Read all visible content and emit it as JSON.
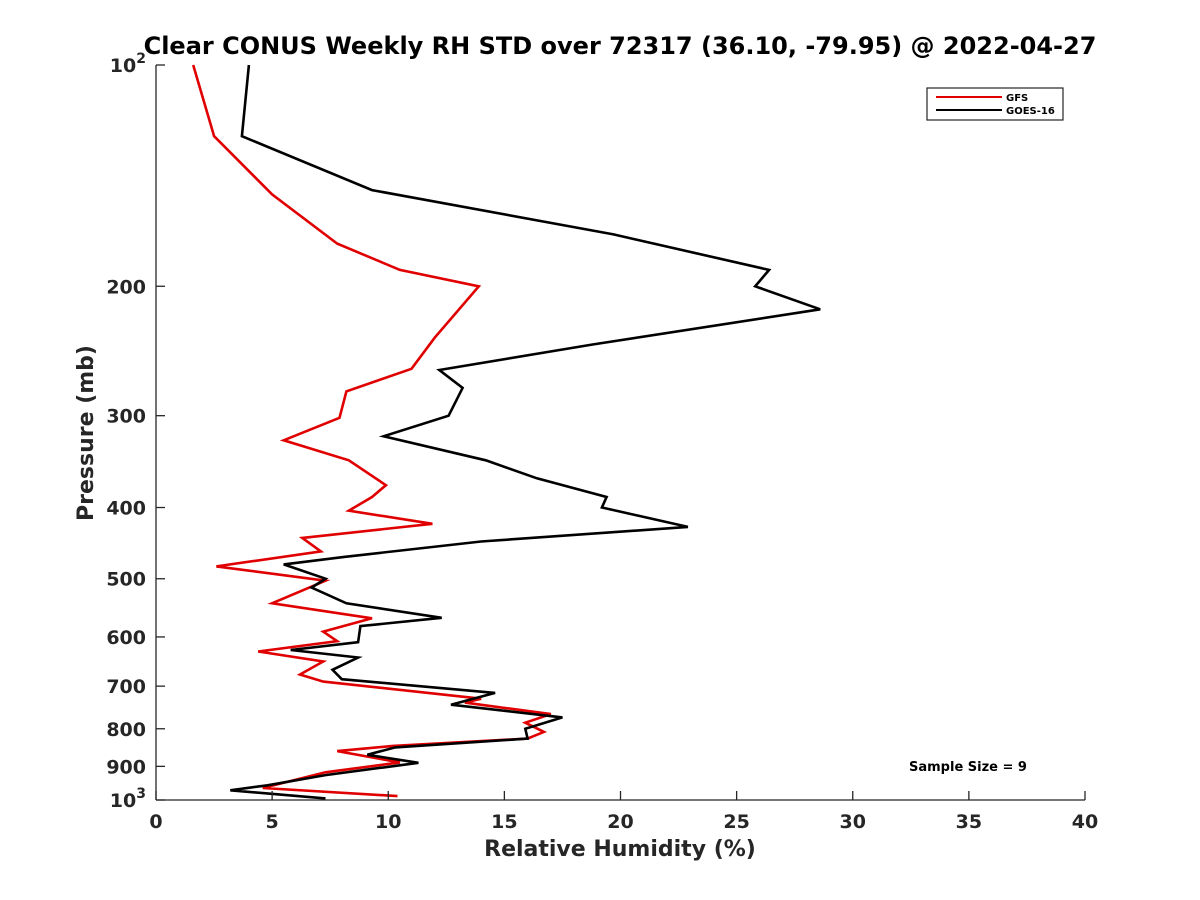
{
  "chart_data": {
    "type": "line",
    "title": "Clear CONUS Weekly RH STD over 72317 (36.10, -79.95) @ 2022-04-27",
    "xlabel": "Relative Humidity (%)",
    "ylabel": "Pressure (mb)",
    "xlim": [
      0,
      40
    ],
    "ylim": [
      100,
      1000
    ],
    "y_scale": "log",
    "y_reversed": true,
    "x_ticks": [
      "0",
      "5",
      "10",
      "15",
      "20",
      "25",
      "30",
      "35",
      "40"
    ],
    "y_ticks": [
      {
        "value": 100,
        "label": "10",
        "sup": "2"
      },
      {
        "value": 200,
        "label": "200",
        "sup": ""
      },
      {
        "value": 300,
        "label": "300",
        "sup": ""
      },
      {
        "value": 400,
        "label": "400",
        "sup": ""
      },
      {
        "value": 500,
        "label": "500",
        "sup": ""
      },
      {
        "value": 600,
        "label": "600",
        "sup": ""
      },
      {
        "value": 700,
        "label": "700",
        "sup": ""
      },
      {
        "value": 800,
        "label": "800",
        "sup": ""
      },
      {
        "value": 900,
        "label": "900",
        "sup": ""
      },
      {
        "value": 1000,
        "label": "10",
        "sup": "3"
      }
    ],
    "legend_position": "top-right",
    "series": [
      {
        "name": "GFS",
        "color": "#e00000",
        "points": [
          [
            1.6,
            100
          ],
          [
            2.5,
            125
          ],
          [
            5,
            150
          ],
          [
            7.8,
            175
          ],
          [
            10.5,
            190
          ],
          [
            13.9,
            200
          ],
          [
            12,
            235
          ],
          [
            11,
            259
          ],
          [
            8.2,
            278
          ],
          [
            7.9,
            302
          ],
          [
            5.5,
            324
          ],
          [
            8.3,
            345
          ],
          [
            9.9,
            373
          ],
          [
            9.3,
            387
          ],
          [
            8.3,
            404
          ],
          [
            11.9,
            421
          ],
          [
            6.3,
            440
          ],
          [
            7.1,
            459
          ],
          [
            2.6,
            481
          ],
          [
            7.3,
            503
          ],
          [
            5,
            540
          ],
          [
            9.3,
            566
          ],
          [
            7.2,
            590
          ],
          [
            7.8,
            608
          ],
          [
            4.4,
            628
          ],
          [
            7.2,
            648
          ],
          [
            6.2,
            675
          ],
          [
            7.2,
            690
          ],
          [
            14,
            728
          ],
          [
            13.3,
            737
          ],
          [
            17,
            764
          ],
          [
            15.9,
            785
          ],
          [
            16.7,
            808
          ],
          [
            16,
            825
          ],
          [
            10.2,
            844
          ],
          [
            7.8,
            858
          ],
          [
            10.5,
            889
          ],
          [
            7.3,
            917
          ],
          [
            4.6,
            963
          ],
          [
            10.4,
            988
          ]
        ]
      },
      {
        "name": "GOES-16",
        "color": "#000000",
        "points": [
          [
            4,
            100
          ],
          [
            3.7,
            125
          ],
          [
            9.3,
            148
          ],
          [
            19.7,
            170
          ],
          [
            26.4,
            190
          ],
          [
            25.8,
            200
          ],
          [
            28.6,
            215
          ],
          [
            18.8,
            240
          ],
          [
            12.2,
            260
          ],
          [
            13.2,
            275
          ],
          [
            12.6,
            300
          ],
          [
            9.8,
            320
          ],
          [
            14.2,
            345
          ],
          [
            16.4,
            365
          ],
          [
            19.4,
            387
          ],
          [
            19.2,
            400
          ],
          [
            22.9,
            425
          ],
          [
            14,
            445
          ],
          [
            8.1,
            467
          ],
          [
            5.5,
            478
          ],
          [
            7.3,
            500
          ],
          [
            6.7,
            514
          ],
          [
            8.2,
            540
          ],
          [
            12.3,
            565
          ],
          [
            8.8,
            580
          ],
          [
            8.7,
            610
          ],
          [
            5.8,
            625
          ],
          [
            8.7,
            640
          ],
          [
            7.6,
            665
          ],
          [
            8,
            685
          ],
          [
            14.6,
            715
          ],
          [
            12.7,
            742
          ],
          [
            17.5,
            772
          ],
          [
            15.9,
            800
          ],
          [
            16,
            825
          ],
          [
            10.3,
            848
          ],
          [
            9.1,
            868
          ],
          [
            11.3,
            890
          ],
          [
            7.3,
            925
          ],
          [
            4.8,
            955
          ],
          [
            3.2,
            970
          ],
          [
            7.3,
            995
          ]
        ]
      }
    ],
    "annotation": "Sample Size = 9"
  }
}
